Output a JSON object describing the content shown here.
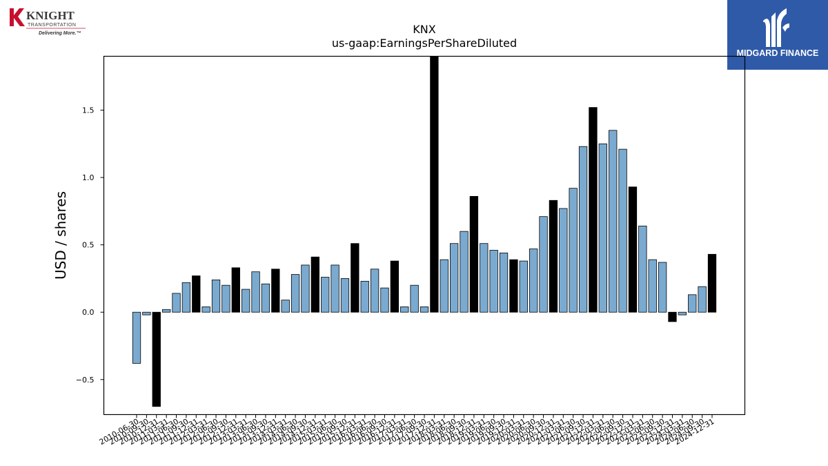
{
  "logos": {
    "left": {
      "brand": "KNIGHT",
      "sub": "TRANSPORTATION",
      "tagline": "Delivering More.™",
      "color": "#c8102e"
    },
    "right": {
      "name": "MIDGARD FINANCE",
      "color": "#2f5aa8"
    }
  },
  "chart_data": {
    "type": "bar",
    "title": "KNX",
    "subtitle": "us-gaap:EarningsPerShareDiluted",
    "ylabel": "USD / shares",
    "xlabel": "",
    "ylim": [
      -0.76,
      1.9
    ],
    "yticks": [
      -0.5,
      0.0,
      0.5,
      1.0,
      1.5
    ],
    "ytick_labels": [
      "−0.5",
      "0.0",
      "0.5",
      "1.0",
      "1.5"
    ],
    "colors": {
      "quarterly": "#7aaad0",
      "annual": "#000000",
      "edge": "#000000"
    },
    "categories": [
      "2010-06-30",
      "2010-09-30",
      "2010-12-31",
      "2011-03-31",
      "2011-06-30",
      "2011-09-30",
      "2011-12-31",
      "2012-03-31",
      "2012-06-30",
      "2012-09-30",
      "2012-12-31",
      "2013-03-31",
      "2013-06-30",
      "2013-09-30",
      "2013-12-31",
      "2014-03-31",
      "2014-06-30",
      "2014-09-30",
      "2014-12-31",
      "2015-03-31",
      "2015-06-30",
      "2015-09-30",
      "2015-12-31",
      "2016-03-31",
      "2016-06-30",
      "2016-09-30",
      "2016-12-31",
      "2017-03-31",
      "2017-06-30",
      "2017-09-30",
      "2017-12-31",
      "2018-03-31",
      "2018-06-30",
      "2018-09-30",
      "2018-12-31",
      "2019-03-31",
      "2019-06-30",
      "2019-09-30",
      "2019-12-31",
      "2020-03-31",
      "2020-06-30",
      "2020-09-30",
      "2020-12-31",
      "2021-03-31",
      "2021-06-30",
      "2021-09-30",
      "2021-12-31",
      "2022-03-31",
      "2022-06-30",
      "2022-09-30",
      "2022-12-31",
      "2023-03-31",
      "2023-06-30",
      "2023-09-30",
      "2023-12-31",
      "2024-03-31",
      "2024-06-30",
      "2024-09-30",
      "2024-12-31"
    ],
    "values": [
      -0.38,
      -0.02,
      -0.7,
      0.02,
      0.14,
      0.22,
      0.27,
      0.04,
      0.24,
      0.2,
      0.33,
      0.17,
      0.3,
      0.21,
      0.32,
      0.09,
      0.28,
      0.35,
      0.41,
      0.26,
      0.35,
      0.25,
      0.51,
      0.23,
      0.32,
      0.18,
      0.38,
      0.04,
      0.2,
      0.04,
      1.9,
      0.39,
      0.51,
      0.6,
      0.86,
      0.51,
      0.46,
      0.44,
      0.39,
      0.38,
      0.47,
      0.71,
      0.83,
      0.77,
      0.92,
      1.23,
      1.52,
      1.25,
      1.35,
      1.21,
      0.93,
      0.64,
      0.39,
      0.37,
      -0.07,
      -0.02,
      0.13,
      0.19,
      0.43
    ],
    "annual_flags": [
      0,
      0,
      1,
      0,
      0,
      0,
      1,
      0,
      0,
      0,
      1,
      0,
      0,
      0,
      1,
      0,
      0,
      0,
      1,
      0,
      0,
      0,
      1,
      0,
      0,
      0,
      1,
      0,
      0,
      0,
      1,
      0,
      0,
      0,
      1,
      0,
      0,
      0,
      1,
      0,
      0,
      0,
      1,
      0,
      0,
      0,
      1,
      0,
      0,
      0,
      1,
      0,
      0,
      0,
      1,
      0,
      0,
      0,
      1
    ]
  }
}
